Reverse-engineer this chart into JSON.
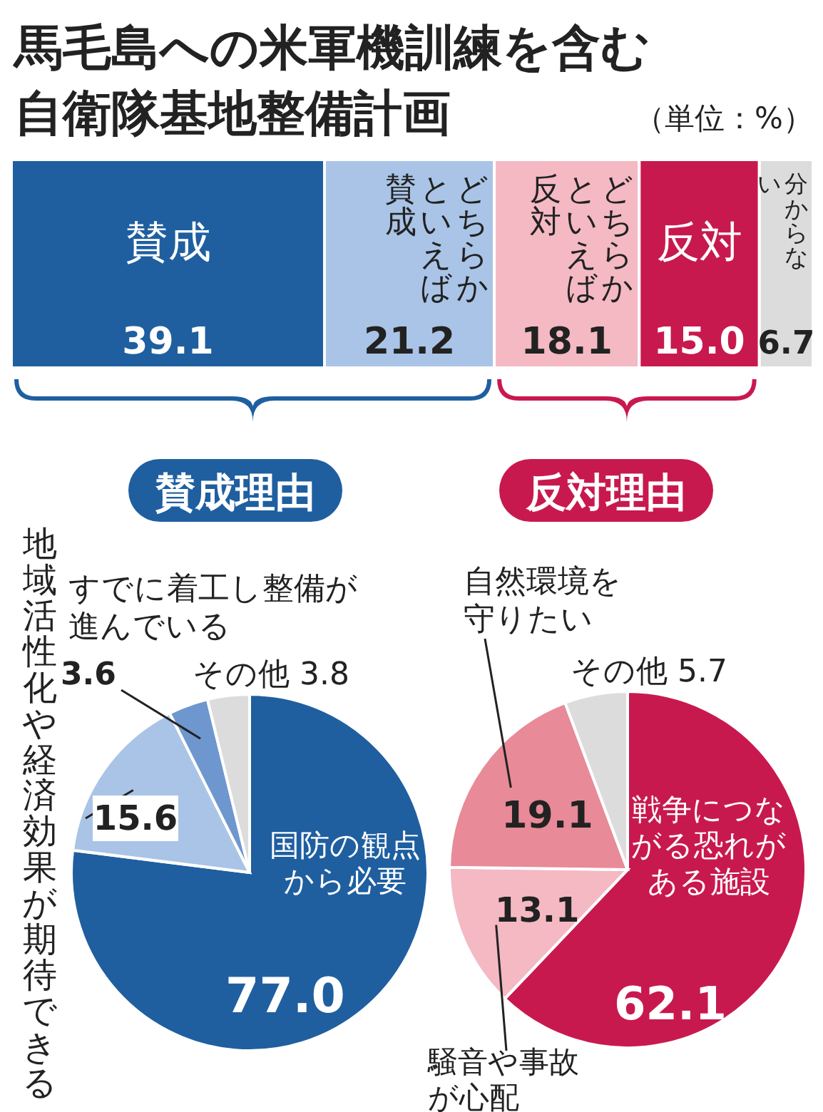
{
  "chart_data": [
    {
      "type": "bar",
      "orientation": "horizontal",
      "stacked": true,
      "title": "馬毛島への米軍機訓練を含む自衛隊基地整備計画",
      "subtitle": "（単位：%）",
      "categories": [
        null
      ],
      "legend": false,
      "series": [
        {
          "name": "賛成",
          "color": "#1f5fa0",
          "values": [
            39.1
          ],
          "value_labels": [
            "39.1"
          ]
        },
        {
          "name": "どちらかといえば賛成",
          "color": "#a9c4e6",
          "values": [
            21.2
          ],
          "value_labels": [
            "21.2"
          ]
        },
        {
          "name": "どちらかといえば反対",
          "color": "#f4b9c3",
          "values": [
            18.1
          ],
          "value_labels": [
            "18.1"
          ]
        },
        {
          "name": "反対",
          "color": "#c8194f",
          "values": [
            15.0
          ],
          "value_labels": [
            "15.0"
          ]
        },
        {
          "name": "分からない",
          "color": "#dcdcdc",
          "values": [
            6.7
          ],
          "value_labels": [
            "6.7"
          ]
        }
      ]
    },
    {
      "type": "pie",
      "title": "賛成理由",
      "legend": false,
      "categories": [
        "国防の観点から必要",
        "地域活性化や経済効果が期待できる",
        "すでに着工し整備が進んでいる",
        "その他"
      ],
      "values": [
        77.0,
        15.6,
        3.6,
        3.8
      ],
      "value_labels": [
        "77.0",
        "15.6",
        "3.6",
        "3.8"
      ],
      "colors": [
        "#1f5fa0",
        "#a9c4e6",
        "#6f97cf",
        "#dcdcdc"
      ]
    },
    {
      "type": "pie",
      "title": "反対理由",
      "legend": false,
      "categories": [
        "戦争につながる恐れがある施設",
        "騒音や事故が心配",
        "自然環境を守りたい",
        "その他"
      ],
      "values": [
        62.1,
        13.1,
        19.1,
        5.7
      ],
      "value_labels": [
        "62.1",
        "13.1",
        "19.1",
        "5.7"
      ],
      "colors": [
        "#c8194f",
        "#f4b9c3",
        "#e88a98",
        "#dcdcdc"
      ]
    }
  ]
}
